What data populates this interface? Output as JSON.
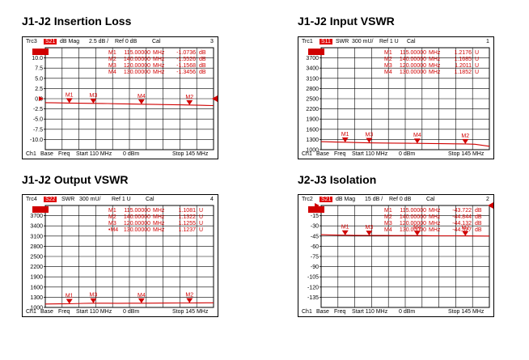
{
  "colors": {
    "trace": "#d00000",
    "grid": "#000000",
    "badge": "#e00000"
  },
  "panels": [
    {
      "title": "J1-J2 Insertion Loss",
      "header": {
        "trc": "Trc3",
        "param": "S21",
        "format": "dB Mag",
        "scale": "2.5 dB /",
        "ref": "Ref 0 dB",
        "cal": "Cal",
        "num": "3"
      },
      "footer": {
        "ch": "Ch1",
        "base": "Base",
        "freq": "Freq",
        "start": "Start  110 MHz",
        "power": "0 dBm",
        "stop": "Stop  145 MHz"
      },
      "marker_table": [
        {
          "name": "M1",
          "freq": "115.00000",
          "unit": "MHz",
          "value": "-1.0736",
          "vunit": "dB"
        },
        {
          "name": "M2",
          "freq": "140.00000",
          "unit": "MHz",
          "value": "-1.5526",
          "vunit": "dB"
        },
        {
          "name": "M3",
          "freq": "120.00000",
          "unit": "MHz",
          "value": "-1.1568",
          "vunit": "dB"
        },
        {
          "name": "M4",
          "freq": "130.00000",
          "unit": "MHz",
          "value": "-1.3456",
          "vunit": "dB"
        }
      ],
      "chart_data": {
        "type": "line",
        "title": "J1-J2 Insertion Loss",
        "xlabel": "",
        "ylabel": "",
        "xlim": [
          110,
          145
        ],
        "ylim": [
          -12.5,
          12.5
        ],
        "yticks": [
          10.0,
          7.5,
          5.0,
          2.5,
          0.0,
          -2.5,
          -5.0,
          -7.5,
          -10.0
        ],
        "ytick_labels": [
          "10.0",
          "7.5",
          "5.0",
          "2.5",
          "0.0",
          "-2.5",
          "-5.0",
          "-7.5",
          "-10.0"
        ],
        "series": [
          {
            "x": [
              110,
              112,
              115,
              117,
              120,
              123,
              125,
              128,
              130,
              133,
              135,
              138,
              140,
              142,
              145
            ],
            "y": [
              -0.98,
              -1.02,
              -1.07,
              -1.12,
              -1.16,
              -1.2,
              -1.25,
              -1.3,
              -1.35,
              -1.4,
              -1.44,
              -1.5,
              -1.55,
              -1.6,
              -1.68
            ]
          }
        ],
        "markers": [
          {
            "label": "M1",
            "x": 115,
            "y": -1.0736
          },
          {
            "label": "M3",
            "x": 120,
            "y": -1.1568
          },
          {
            "label": "M4",
            "x": 130,
            "y": -1.3456
          },
          {
            "label": "M2",
            "x": 140,
            "y": -1.5526
          }
        ],
        "ref_value": 0
      }
    },
    {
      "title": "J1-J2 Input VSWR",
      "header": {
        "trc": "Trc1",
        "param": "S11",
        "format": "SWR",
        "scale": "300 mU/",
        "ref": "Ref 1 U",
        "cal": "Cal",
        "num": "1"
      },
      "footer": {
        "ch": "Ch1",
        "base": "Base",
        "freq": "Freq",
        "start": "Start  110 MHz",
        "power": "0 dBm",
        "stop": "Stop  145 MHz"
      },
      "marker_table": [
        {
          "name": "M1",
          "freq": "115.00000",
          "unit": "MHz",
          "value": "1.2176",
          "vunit": "U"
        },
        {
          "name": "M2",
          "freq": "140.00000",
          "unit": "MHz",
          "value": "1.1685",
          "vunit": "U"
        },
        {
          "name": "M3",
          "freq": "120.00000",
          "unit": "MHz",
          "value": "1.2011",
          "vunit": "U"
        },
        {
          "name": "M4",
          "freq": "130.00000",
          "unit": "MHz",
          "value": "1.1852",
          "vunit": "U"
        }
      ],
      "chart_data": {
        "type": "line",
        "title": "J1-J2 Input VSWR",
        "xlabel": "",
        "ylabel": "",
        "xlim": [
          110,
          145
        ],
        "ylim": [
          1000,
          4000
        ],
        "yticks": [
          3700,
          3400,
          3100,
          2800,
          2500,
          2200,
          1900,
          1600,
          1300,
          1000
        ],
        "ytick_labels": [
          "3700",
          "3400",
          "3100",
          "2800",
          "2500",
          "2200",
          "1900",
          "1600",
          "1300",
          "1000"
        ],
        "series": [
          {
            "x": [
              110,
              113,
              115,
              118,
              120,
              123,
              125,
              128,
              130,
              133,
              135,
              138,
              140,
              142,
              145
            ],
            "y": [
              1235,
              1225,
              1218,
              1208,
              1201,
              1196,
              1192,
              1188,
              1185,
              1180,
              1177,
              1172,
              1169,
              1160,
              1100
            ]
          }
        ],
        "markers": [
          {
            "label": "M1",
            "x": 115,
            "y": 1217.6
          },
          {
            "label": "M3",
            "x": 120,
            "y": 1201.1
          },
          {
            "label": "M4",
            "x": 130,
            "y": 1185.2
          },
          {
            "label": "M2",
            "x": 140,
            "y": 1168.5
          }
        ]
      }
    },
    {
      "title": "J1-J2 Output VSWR",
      "header": {
        "trc": "Trc4",
        "param": "S22",
        "format": "SWR",
        "scale": "300 mU/",
        "ref": "Ref 1 U",
        "cal": "Cal",
        "num": "4"
      },
      "footer": {
        "ch": "Ch1",
        "base": "Base",
        "freq": "Freq",
        "start": "Start  110 MHz",
        "power": "0 dBm",
        "stop": "Stop  145 MHz"
      },
      "marker_table": [
        {
          "name": "M1",
          "freq": "115.00000",
          "unit": "MHz",
          "value": "1.1081",
          "vunit": "U"
        },
        {
          "name": "M2",
          "freq": "140.00000",
          "unit": "MHz",
          "value": "1.1322",
          "vunit": "U"
        },
        {
          "name": "M3",
          "freq": "120.00000",
          "unit": "MHz",
          "value": "1.1255",
          "vunit": "U"
        },
        {
          "name": "•M4",
          "freq": "130.00000",
          "unit": "MHz",
          "value": "1.1237",
          "vunit": "U"
        }
      ],
      "chart_data": {
        "type": "line",
        "title": "J1-J2 Output VSWR",
        "xlabel": "",
        "ylabel": "",
        "xlim": [
          110,
          145
        ],
        "ylim": [
          1000,
          4000
        ],
        "yticks": [
          3700,
          3400,
          3100,
          2800,
          2500,
          2200,
          1900,
          1600,
          1300,
          1000
        ],
        "ytick_labels": [
          "3700",
          "3400",
          "3100",
          "2800",
          "2500",
          "2200",
          "1900",
          "1600",
          "1300",
          "1000"
        ],
        "series": [
          {
            "x": [
              110,
              113,
              115,
              118,
              120,
              123,
              125,
              128,
              130,
              133,
              135,
              138,
              140,
              142,
              145
            ],
            "y": [
              1100,
              1105,
              1108,
              1118,
              1125,
              1124,
              1122,
              1123,
              1124,
              1127,
              1129,
              1131,
              1132,
              1133,
              1135
            ]
          }
        ],
        "markers": [
          {
            "label": "M1",
            "x": 115,
            "y": 1108.1
          },
          {
            "label": "M3",
            "x": 120,
            "y": 1125.5
          },
          {
            "label": "M4",
            "x": 130,
            "y": 1123.7
          },
          {
            "label": "M2",
            "x": 140,
            "y": 1132.2
          }
        ]
      }
    },
    {
      "title": "J2-J3 Isolation",
      "header": {
        "trc": "Trc2",
        "param": "S21",
        "format": "dB Mag",
        "scale": "15 dB /",
        "ref": "Ref 0 dB",
        "cal": "Cal",
        "num": "2"
      },
      "footer": {
        "ch": "Ch1",
        "base": "Base",
        "freq": "Freq",
        "start": "Start  110 MHz",
        "power": "0 dBm",
        "stop": "Stop  145 MHz"
      },
      "marker_table": [
        {
          "name": "M1",
          "freq": "115.00000",
          "unit": "MHz",
          "value": "-43.722",
          "vunit": "dB"
        },
        {
          "name": "M2",
          "freq": "140.00000",
          "unit": "MHz",
          "value": "-44.844",
          "vunit": "dB"
        },
        {
          "name": "M3",
          "freq": "120.00000",
          "unit": "MHz",
          "value": "-44.132",
          "vunit": "dB"
        },
        {
          "name": "M4",
          "freq": "130.00000",
          "unit": "MHz",
          "value": "-44.327",
          "vunit": "dB"
        }
      ],
      "chart_data": {
        "type": "line",
        "title": "J2-J3 Isolation",
        "xlabel": "",
        "ylabel": "",
        "xlim": [
          110,
          145
        ],
        "ylim": [
          -150,
          0
        ],
        "yticks": [
          -15,
          -30,
          -45,
          -60,
          -75,
          -90,
          -105,
          -120,
          -135
        ],
        "ytick_labels": [
          "-15",
          "-30",
          "-45",
          "-60",
          "-75",
          "-90",
          "-105",
          "-120",
          "-135"
        ],
        "series": [
          {
            "x": [
              110,
              112,
              115,
              117,
              120,
              123,
              125,
              128,
              130,
              133,
              135,
              138,
              140,
              142,
              145
            ],
            "y": [
              -43.0,
              -43.3,
              -43.7,
              -43.9,
              -44.1,
              -44.2,
              -44.3,
              -44.3,
              -44.3,
              -44.5,
              -44.6,
              -44.7,
              -44.8,
              -44.9,
              -45.0
            ]
          }
        ],
        "markers": [
          {
            "label": "M1",
            "x": 115,
            "y": -43.722
          },
          {
            "label": "M3",
            "x": 120,
            "y": -44.132
          },
          {
            "label": "M4",
            "x": 130,
            "y": -44.327
          },
          {
            "label": "M2",
            "x": 140,
            "y": -44.844
          }
        ],
        "ref_value": 0
      }
    }
  ]
}
